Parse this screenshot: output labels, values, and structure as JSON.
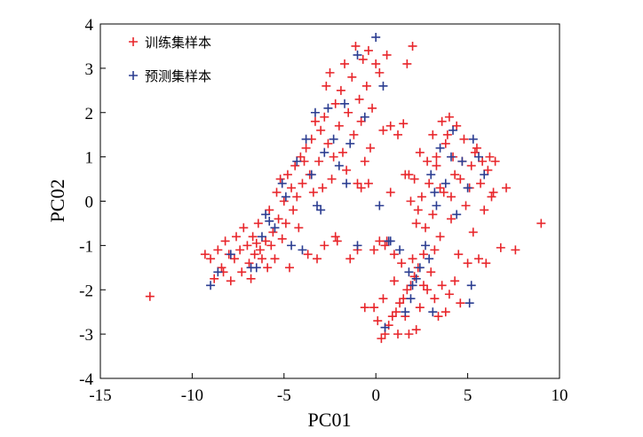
{
  "chart_data": {
    "type": "scatter",
    "xlabel": "PC01",
    "ylabel": "PC02",
    "xlim": [
      -15,
      10
    ],
    "ylim": [
      -4,
      4
    ],
    "x_ticks": [
      "-15",
      "-10",
      "-5",
      "0",
      "5",
      "10"
    ],
    "y_ticks": [
      "-4",
      "-3",
      "-2",
      "-1",
      "0",
      "1",
      "2",
      "3",
      "4"
    ],
    "legend_position": "top-left",
    "grid": false,
    "marker": "plus",
    "series": [
      {
        "name": "训练集样本",
        "color": "#e8262b",
        "points": [
          [
            -12.3,
            -2.15
          ],
          [
            -9.3,
            -1.2
          ],
          [
            -9.0,
            -1.3
          ],
          [
            -8.8,
            -1.75
          ],
          [
            -8.6,
            -1.1
          ],
          [
            -8.4,
            -1.5
          ],
          [
            -8.3,
            -1.6
          ],
          [
            -8.2,
            -0.9
          ],
          [
            -8.0,
            -1.2
          ],
          [
            -7.9,
            -1.8
          ],
          [
            -7.7,
            -1.3
          ],
          [
            -7.6,
            -0.8
          ],
          [
            -7.4,
            -1.1
          ],
          [
            -7.3,
            -1.6
          ],
          [
            -7.2,
            -0.6
          ],
          [
            -7.0,
            -1.0
          ],
          [
            -6.9,
            -1.4
          ],
          [
            -6.8,
            -1.75
          ],
          [
            -6.7,
            -0.8
          ],
          [
            -6.6,
            -1.2
          ],
          [
            -6.5,
            -0.95
          ],
          [
            -6.4,
            -0.5
          ],
          [
            -6.3,
            -1.1
          ],
          [
            -6.2,
            -1.3
          ],
          [
            -6.0,
            -0.9
          ],
          [
            -5.9,
            -1.5
          ],
          [
            -5.8,
            -0.2
          ],
          [
            -5.7,
            -1.0
          ],
          [
            -5.6,
            -0.7
          ],
          [
            -5.5,
            -1.3
          ],
          [
            -5.4,
            0.2
          ],
          [
            -5.3,
            -0.4
          ],
          [
            -5.2,
            0.5
          ],
          [
            -5.1,
            -0.85
          ],
          [
            -5.0,
            0.0
          ],
          [
            -4.9,
            -0.5
          ],
          [
            -4.8,
            0.6
          ],
          [
            -4.7,
            -1.5
          ],
          [
            -4.6,
            0.3
          ],
          [
            -4.5,
            -0.2
          ],
          [
            -4.4,
            0.8
          ],
          [
            -4.3,
            0.1
          ],
          [
            -4.2,
            -0.6
          ],
          [
            -4.1,
            1.0
          ],
          [
            -4.0,
            0.4
          ],
          [
            -3.9,
            0.9
          ],
          [
            -3.8,
            1.2
          ],
          [
            -3.7,
            -1.2
          ],
          [
            -3.6,
            0.6
          ],
          [
            -3.5,
            1.4
          ],
          [
            -3.4,
            0.2
          ],
          [
            -3.3,
            1.8
          ],
          [
            -3.2,
            -1.3
          ],
          [
            -3.1,
            0.9
          ],
          [
            -3.0,
            1.6
          ],
          [
            -2.9,
            0.3
          ],
          [
            -2.8,
            1.9
          ],
          [
            -2.7,
            2.6
          ],
          [
            -2.6,
            1.3
          ],
          [
            -2.5,
            2.9
          ],
          [
            -2.4,
            0.5
          ],
          [
            -2.3,
            1.0
          ],
          [
            -2.2,
            2.2
          ],
          [
            -2.1,
            -0.9
          ],
          [
            -2.0,
            1.7
          ],
          [
            -1.9,
            2.5
          ],
          [
            -1.8,
            1.1
          ],
          [
            -1.7,
            3.1
          ],
          [
            -1.6,
            0.7
          ],
          [
            -1.5,
            2.0
          ],
          [
            -1.4,
            -1.3
          ],
          [
            -1.3,
            2.8
          ],
          [
            -1.2,
            1.5
          ],
          [
            -1.1,
            3.5
          ],
          [
            -1.0,
            0.4
          ],
          [
            -0.9,
            2.3
          ],
          [
            -0.8,
            1.8
          ],
          [
            -0.7,
            3.2
          ],
          [
            -0.6,
            0.9
          ],
          [
            -0.5,
            2.6
          ],
          [
            -0.4,
            3.4
          ],
          [
            -0.3,
            1.2
          ],
          [
            -0.2,
            2.1
          ],
          [
            -0.1,
            -1.1
          ],
          [
            0.0,
            3.1
          ],
          [
            0.2,
            2.9
          ],
          [
            0.4,
            1.6
          ],
          [
            0.5,
            -1.0
          ],
          [
            0.6,
            3.3
          ],
          [
            0.8,
            1.7
          ],
          [
            1.0,
            -1.2
          ],
          [
            1.2,
            1.5
          ],
          [
            1.4,
            -1.4
          ],
          [
            1.5,
            1.75
          ],
          [
            1.7,
            3.1
          ],
          [
            1.8,
            0.6
          ],
          [
            2.0,
            3.5
          ],
          [
            2.2,
            -0.5
          ],
          [
            2.4,
            1.1
          ],
          [
            2.6,
            -1.9
          ],
          [
            -2.8,
            -1.0
          ],
          [
            -2.2,
            -0.8
          ],
          [
            -1.0,
            -1.1
          ],
          [
            -0.8,
            0.3
          ],
          [
            -0.4,
            0.4
          ],
          [
            0.2,
            -0.9
          ],
          [
            0.6,
            -0.9
          ],
          [
            0.8,
            0.2
          ],
          [
            1.6,
            0.6
          ],
          [
            1.9,
            0.0
          ],
          [
            2.1,
            0.5
          ],
          [
            2.3,
            -0.2
          ],
          [
            2.5,
            0.1
          ],
          [
            2.7,
            -0.6
          ],
          [
            2.9,
            0.4
          ],
          [
            3.1,
            -0.3
          ],
          [
            3.3,
            0.8
          ],
          [
            3.5,
            -0.8
          ],
          [
            3.7,
            0.2
          ],
          [
            3.9,
            1.5
          ],
          [
            4.1,
            -0.4
          ],
          [
            4.3,
            0.6
          ],
          [
            4.5,
            -1.2
          ],
          [
            4.7,
            0.9
          ],
          [
            4.9,
            -0.1
          ],
          [
            5.1,
            0.3
          ],
          [
            5.3,
            -0.7
          ],
          [
            5.5,
            1.2
          ],
          [
            5.7,
            0.4
          ],
          [
            5.9,
            -0.2
          ],
          [
            6.1,
            0.7
          ],
          [
            6.3,
            0.1
          ],
          [
            6.5,
            0.9
          ],
          [
            6.8,
            -1.05
          ],
          [
            7.1,
            0.3
          ],
          [
            7.6,
            -1.1
          ],
          [
            9.0,
            -0.5
          ],
          [
            5.0,
            -1.4
          ],
          [
            5.6,
            -1.3
          ],
          [
            6.0,
            -1.4
          ],
          [
            3.1,
            1.5
          ],
          [
            3.3,
            1.0
          ],
          [
            3.6,
            1.8
          ],
          [
            3.8,
            1.3
          ],
          [
            4.0,
            1.9
          ],
          [
            4.2,
            1.0
          ],
          [
            4.4,
            1.7
          ],
          [
            4.6,
            0.5
          ],
          [
            4.8,
            1.4
          ],
          [
            5.2,
            0.8
          ],
          [
            5.4,
            1.1
          ],
          [
            5.8,
            0.9
          ],
          [
            6.2,
            1.0
          ],
          [
            6.4,
            0.2
          ],
          [
            4.1,
            0.1
          ],
          [
            3.5,
            0.3
          ],
          [
            2.8,
            0.9
          ],
          [
            3.2,
            -1.1
          ],
          [
            2.6,
            -1.2
          ],
          [
            2.3,
            -1.5
          ],
          [
            2.1,
            -1.7
          ],
          [
            1.9,
            -1.9
          ],
          [
            1.7,
            -2.0
          ],
          [
            1.5,
            -2.2
          ],
          [
            1.3,
            -2.3
          ],
          [
            1.1,
            -2.5
          ],
          [
            0.9,
            -2.6
          ],
          [
            0.7,
            -2.8
          ],
          [
            0.5,
            -3.0
          ],
          [
            0.3,
            -3.1
          ],
          [
            0.1,
            -2.7
          ],
          [
            -0.1,
            -2.4
          ],
          [
            0.4,
            -2.2
          ],
          [
            1.0,
            -1.8
          ],
          [
            1.6,
            -2.6
          ],
          [
            2.4,
            -2.4
          ],
          [
            2.8,
            -2.0
          ],
          [
            3.0,
            -1.6
          ],
          [
            3.2,
            -2.2
          ],
          [
            3.4,
            -2.6
          ],
          [
            3.6,
            -1.9
          ],
          [
            3.8,
            -2.5
          ],
          [
            4.0,
            -2.1
          ],
          [
            4.3,
            -1.8
          ],
          [
            4.6,
            -2.3
          ],
          [
            2.2,
            -2.9
          ],
          [
            1.8,
            -3.0
          ],
          [
            1.2,
            -3.0
          ],
          [
            -0.6,
            -2.4
          ],
          [
            2.0,
            -1.3
          ]
        ]
      },
      {
        "name": "预测集样本",
        "color": "#2b3d91",
        "points": [
          [
            -9.0,
            -1.9
          ],
          [
            -8.6,
            -1.6
          ],
          [
            -7.9,
            -1.2
          ],
          [
            -6.8,
            -1.5
          ],
          [
            -6.2,
            -0.8
          ],
          [
            -6.0,
            -0.3
          ],
          [
            -5.5,
            -0.6
          ],
          [
            -5.1,
            0.4
          ],
          [
            -4.9,
            0.1
          ],
          [
            -4.6,
            -1.0
          ],
          [
            -4.3,
            0.9
          ],
          [
            -4.0,
            -1.1
          ],
          [
            -3.8,
            1.4
          ],
          [
            -3.5,
            0.6
          ],
          [
            -3.3,
            2.0
          ],
          [
            -3.0,
            -0.2
          ],
          [
            -2.8,
            1.1
          ],
          [
            -2.6,
            2.1
          ],
          [
            -2.3,
            1.4
          ],
          [
            -2.0,
            0.8
          ],
          [
            -1.7,
            2.2
          ],
          [
            -1.4,
            1.3
          ],
          [
            -1.0,
            3.3
          ],
          [
            -0.6,
            1.9
          ],
          [
            0.0,
            3.7
          ],
          [
            0.2,
            -0.1
          ],
          [
            0.4,
            2.6
          ],
          [
            0.8,
            -0.9
          ],
          [
            1.3,
            -1.1
          ],
          [
            1.8,
            -1.6
          ],
          [
            2.0,
            -1.9
          ],
          [
            2.2,
            -1.75
          ],
          [
            2.4,
            -1.5
          ],
          [
            2.7,
            -1.0
          ],
          [
            3.0,
            0.6
          ],
          [
            3.2,
            0.2
          ],
          [
            3.5,
            1.2
          ],
          [
            3.8,
            0.4
          ],
          [
            4.1,
            1.0
          ],
          [
            4.4,
            -0.3
          ],
          [
            4.7,
            0.9
          ],
          [
            5.0,
            0.3
          ],
          [
            5.3,
            1.4
          ],
          [
            5.6,
            1.0
          ],
          [
            5.9,
            0.6
          ],
          [
            5.2,
            -1.9
          ],
          [
            5.1,
            -2.3
          ],
          [
            3.1,
            -2.5
          ],
          [
            1.6,
            -2.5
          ],
          [
            0.5,
            -2.85
          ],
          [
            -1.0,
            -1.0
          ],
          [
            -1.6,
            0.4
          ],
          [
            -3.2,
            -0.1
          ],
          [
            -5.8,
            -0.45
          ],
          [
            -6.5,
            -1.5
          ],
          [
            3.3,
            -0.1
          ],
          [
            4.2,
            1.6
          ],
          [
            2.9,
            -1.3
          ],
          [
            1.9,
            -2.2
          ],
          [
            0.7,
            -0.9
          ]
        ]
      }
    ]
  }
}
